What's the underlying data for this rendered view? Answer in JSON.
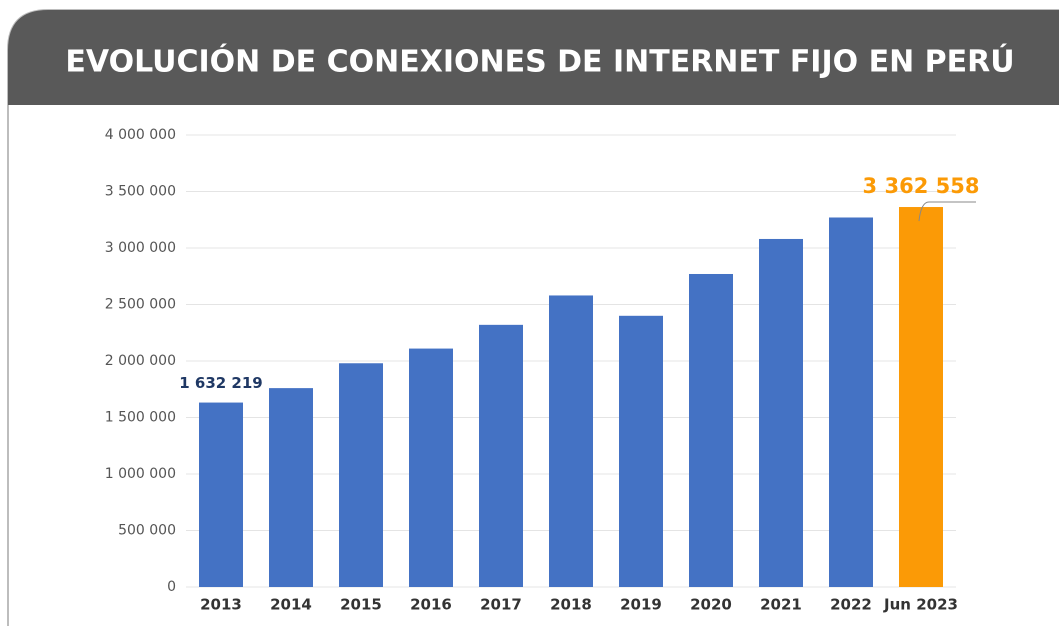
{
  "chart_data": {
    "type": "bar",
    "title": "EVOLUCIÓN DE CONEXIONES DE INTERNET FIJO EN PERÚ",
    "categories": [
      "2013",
      "2014",
      "2015",
      "2016",
      "2017",
      "2018",
      "2019",
      "2020",
      "2021",
      "2022",
      "Jun 2023"
    ],
    "values": [
      1632219,
      1760000,
      1980000,
      2110000,
      2320000,
      2580000,
      2400000,
      2770000,
      3080000,
      3270000,
      3362558
    ],
    "value_labels": [
      "1 632 219",
      null,
      null,
      null,
      null,
      null,
      null,
      null,
      null,
      null,
      "3 362 558"
    ],
    "colors": [
      "#4472c4",
      "#4472c4",
      "#4472c4",
      "#4472c4",
      "#4472c4",
      "#4472c4",
      "#4472c4",
      "#4472c4",
      "#4472c4",
      "#4472c4",
      "#fb9a06"
    ],
    "ylim": [
      0,
      4000000
    ],
    "yticks": [
      0,
      {
        "value": 500000,
        "label": "500 000"
      },
      {
        "value": 1000000,
        "label": "1 000 000"
      },
      {
        "value": 1500000,
        "label": "1 500 000"
      },
      {
        "value": 2000000,
        "label": "2 000 000"
      },
      {
        "value": 2500000,
        "label": "2 500 000"
      },
      {
        "value": 3000000,
        "label": "3 000 000"
      },
      {
        "value": 3500000,
        "label": "3 500 000"
      },
      {
        "value": 4000000,
        "label": "4 000 000"
      }
    ],
    "grid": true
  }
}
